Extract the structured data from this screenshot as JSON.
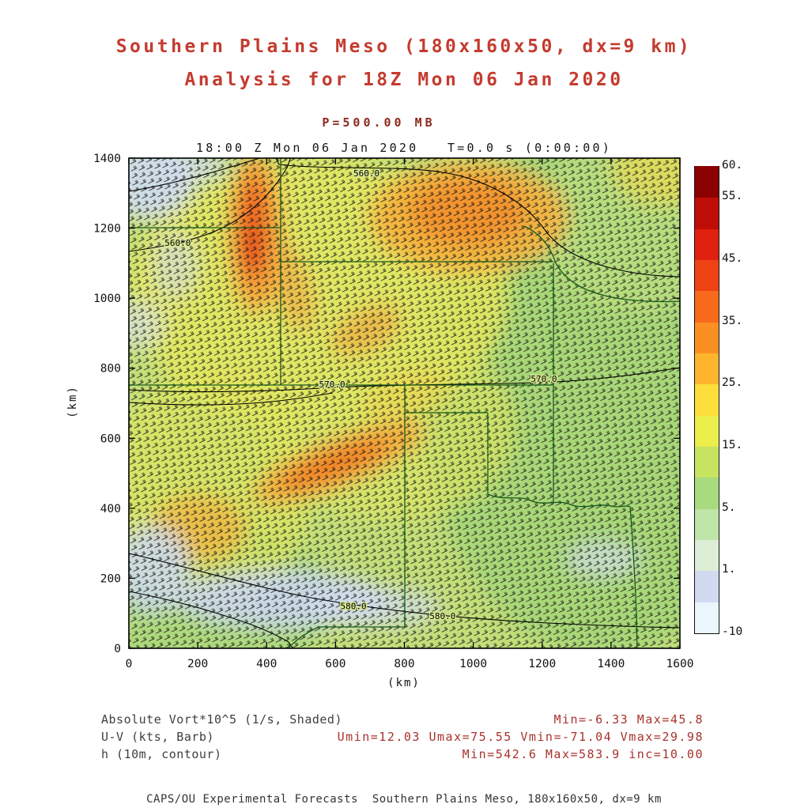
{
  "header": {
    "title_line1": "Southern Plains Meso (180x160x50, dx=9 km)",
    "title_line2": "Analysis for 18Z Mon 06 Jan 2020"
  },
  "chart_data": {
    "type": "heatmap",
    "title": "P=500.00 MB",
    "time_label": "18:00 Z Mon 06 Jan 2020   T=0.0 s (0:00:00)",
    "xlabel": "(km)",
    "ylabel": "(km)",
    "xlim": [
      0,
      1600
    ],
    "ylim": [
      0,
      1400
    ],
    "xticks": [
      0,
      200,
      400,
      600,
      800,
      1000,
      1200,
      1400,
      1600
    ],
    "yticks": [
      0,
      200,
      400,
      600,
      800,
      1000,
      1200,
      1400
    ],
    "grid": false,
    "colorbar": {
      "position": "right",
      "anchors": [
        -10,
        1,
        5,
        15,
        25,
        35,
        45,
        55,
        60
      ],
      "tick_labels": [
        "-10",
        "1.",
        "5.",
        "15.",
        "25.",
        "35.",
        "45.",
        "55.",
        "60."
      ],
      "cell_colors_bottom_to_top": [
        "#eaf5fc",
        "#d2daf2",
        "#dcefd6",
        "#c0e5a8",
        "#a8da7e",
        "#c6e45f",
        "#ebee4b",
        "#fdde3a",
        "#feb52e",
        "#fb8f22",
        "#f7691b",
        "#f04314",
        "#e02110",
        "#bf0e08",
        "#8b0000"
      ]
    },
    "layers": [
      {
        "name": "absolute-vorticity-shaded",
        "legend": "Absolute Vort*10^5 (1/s, Shaded)",
        "stats": "Min=-6.33 Max=45.8"
      },
      {
        "name": "wind-barbs",
        "legend": "U-V (kts, Barb)",
        "stats": "Umin=12.03 Umax=75.55 Vmin=-71.04 Vmax=29.98"
      },
      {
        "name": "height-contours",
        "legend": "h (10m, contour)",
        "stats": "Min=542.6 Max=583.9 inc=10.00"
      }
    ],
    "contour_labels": [
      {
        "text": "560.0",
        "x_km": 142,
        "y_km": 1156
      },
      {
        "text": "560.0",
        "x_km": 690,
        "y_km": 1355
      },
      {
        "text": "570.0",
        "x_km": 590,
        "y_km": 752
      },
      {
        "text": "570.0",
        "x_km": 1205,
        "y_km": 768
      },
      {
        "text": "580.0",
        "x_km": 652,
        "y_km": 118
      },
      {
        "text": "580.0",
        "x_km": 911,
        "y_km": 90
      }
    ],
    "vorticity_maxima_approx_km": [
      {
        "x": 330,
        "y": 1160
      },
      {
        "x": 610,
        "y": 1240
      },
      {
        "x": 470,
        "y": 540
      },
      {
        "x": 150,
        "y": 350
      }
    ]
  },
  "footer": {
    "text": "CAPS/OU Experimental Forecasts  Southern Plains Meso, 180x160x50, dx=9 km"
  }
}
